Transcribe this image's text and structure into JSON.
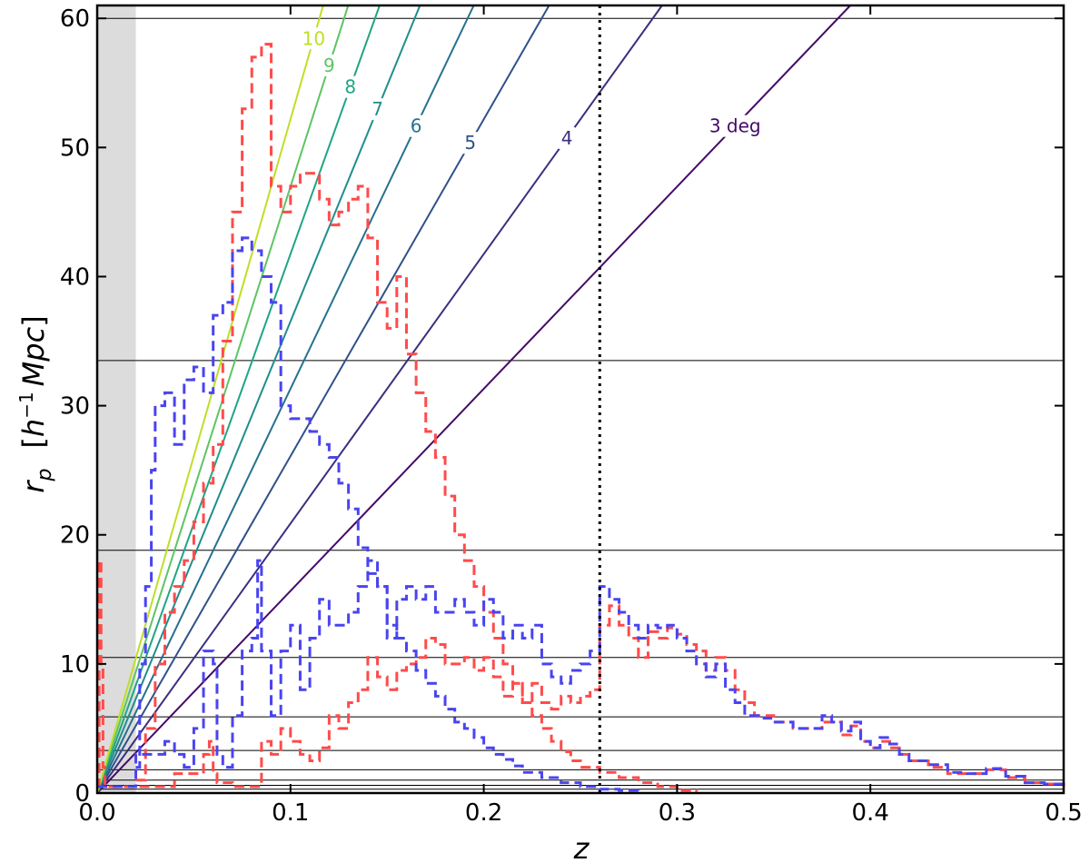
{
  "chart_data": {
    "type": "line",
    "title": "",
    "xlabel": "z",
    "ylabel_main": "r",
    "ylabel_sub": "p",
    "ylabel_units_open": "[",
    "ylabel_units_h": "h",
    "ylabel_units_exp": "−1",
    "ylabel_units_rest": "Mpc",
    "ylabel_units_close": "]",
    "xlim": [
      0.0,
      0.5
    ],
    "ylim": [
      0,
      61
    ],
    "xticks": [
      0.0,
      0.1,
      0.2,
      0.3,
      0.4,
      0.5
    ],
    "xtick_labels": [
      "0.0",
      "0.1",
      "0.2",
      "0.3",
      "0.4",
      "0.5"
    ],
    "yticks": [
      0,
      10,
      20,
      30,
      40,
      50,
      60
    ],
    "ytick_labels": [
      "0",
      "10",
      "20",
      "30",
      "40",
      "50",
      "60"
    ],
    "shaded_region": {
      "x": [
        0.0,
        0.02
      ],
      "color": "#dcdcdc"
    },
    "vertical_line": {
      "x": 0.26,
      "style": "dotted",
      "color": "#000000"
    },
    "horizontal_lines": [
      0.3,
      0.6,
      1.0,
      1.8,
      3.3,
      5.9,
      10.5,
      18.8,
      33.5,
      60.0
    ],
    "angle_lines": [
      {
        "deg": 3,
        "label": "3 deg",
        "color": "#440a68",
        "label_x": 0.33
      },
      {
        "deg": 4,
        "label": "4",
        "color": "#3b2f80",
        "label_x": 0.243
      },
      {
        "deg": 5,
        "label": "5",
        "color": "#30518a",
        "label_x": 0.193
      },
      {
        "deg": 6,
        "label": "6",
        "color": "#26718e",
        "label_x": 0.165
      },
      {
        "deg": 7,
        "label": "7",
        "color": "#1f8e8c",
        "label_x": 0.145
      },
      {
        "deg": 8,
        "label": "8",
        "color": "#20a584",
        "label_x": 0.131
      },
      {
        "deg": 9,
        "label": "9",
        "color": "#5cc562",
        "label_x": 0.12
      },
      {
        "deg": 10,
        "label": "10",
        "color": "#bddf26",
        "label_x": 0.112
      }
    ],
    "series": [
      {
        "color": "#ff4b4b",
        "style": "dashed",
        "points": [
          [
            0.0,
            0.5
          ],
          [
            0.001,
            18
          ],
          [
            0.002,
            10
          ],
          [
            0.003,
            2
          ],
          [
            0.004,
            0.5
          ],
          [
            0.02,
            0.5
          ],
          [
            0.04,
            1.5
          ],
          [
            0.05,
            1.5
          ],
          [
            0.055,
            3
          ],
          [
            0.058,
            4
          ],
          [
            0.06,
            1.5
          ],
          [
            0.062,
            0.8
          ],
          [
            0.07,
            0.5
          ],
          [
            0.08,
            0.5
          ],
          [
            0.085,
            4
          ],
          [
            0.09,
            3
          ],
          [
            0.095,
            5
          ],
          [
            0.1,
            4
          ],
          [
            0.105,
            3
          ],
          [
            0.11,
            2.5
          ],
          [
            0.115,
            3.5
          ],
          [
            0.12,
            6
          ],
          [
            0.125,
            5
          ],
          [
            0.13,
            7
          ],
          [
            0.135,
            8
          ],
          [
            0.14,
            10.5
          ],
          [
            0.145,
            9
          ],
          [
            0.15,
            8
          ],
          [
            0.155,
            9.5
          ],
          [
            0.16,
            10
          ],
          [
            0.165,
            10.5
          ],
          [
            0.17,
            12
          ],
          [
            0.175,
            11.5
          ],
          [
            0.18,
            10
          ],
          [
            0.185,
            10
          ],
          [
            0.19,
            10.5
          ],
          [
            0.195,
            9.5
          ],
          [
            0.2,
            10.5
          ],
          [
            0.205,
            9
          ],
          [
            0.21,
            7.5
          ],
          [
            0.215,
            8.5
          ],
          [
            0.22,
            7
          ],
          [
            0.225,
            8.5
          ],
          [
            0.23,
            7
          ],
          [
            0.235,
            6.5
          ],
          [
            0.24,
            7.5
          ],
          [
            0.245,
            7
          ],
          [
            0.25,
            7.5
          ],
          [
            0.255,
            8
          ],
          [
            0.26,
            13
          ],
          [
            0.265,
            14.5
          ],
          [
            0.27,
            13
          ],
          [
            0.275,
            12
          ],
          [
            0.28,
            10.5
          ],
          [
            0.285,
            12.5
          ],
          [
            0.29,
            12
          ],
          [
            0.295,
            12.8
          ],
          [
            0.3,
            12.3
          ],
          [
            0.305,
            11.5
          ],
          [
            0.31,
            11
          ],
          [
            0.315,
            9.5
          ],
          [
            0.32,
            10.5
          ],
          [
            0.325,
            9.5
          ],
          [
            0.33,
            8
          ],
          [
            0.335,
            7
          ],
          [
            0.34,
            6
          ],
          [
            0.345,
            6
          ],
          [
            0.35,
            5.5
          ],
          [
            0.36,
            5
          ],
          [
            0.37,
            5
          ],
          [
            0.375,
            5.5
          ],
          [
            0.38,
            5.5
          ],
          [
            0.385,
            4.5
          ],
          [
            0.39,
            5.2
          ],
          [
            0.395,
            4
          ],
          [
            0.4,
            3.5
          ],
          [
            0.405,
            4
          ],
          [
            0.41,
            3.5
          ],
          [
            0.415,
            3
          ],
          [
            0.42,
            2.5
          ],
          [
            0.43,
            2
          ],
          [
            0.44,
            1.5
          ],
          [
            0.45,
            1.5
          ],
          [
            0.46,
            1.8
          ],
          [
            0.47,
            1.2
          ],
          [
            0.48,
            0.8
          ],
          [
            0.49,
            0.7
          ],
          [
            0.5,
            0.5
          ]
        ]
      },
      {
        "color": "#ff4b4b",
        "style": "dashed",
        "points": [
          [
            0.02,
            1
          ],
          [
            0.025,
            5
          ],
          [
            0.03,
            10
          ],
          [
            0.035,
            14
          ],
          [
            0.04,
            16
          ],
          [
            0.045,
            18
          ],
          [
            0.05,
            21
          ],
          [
            0.055,
            24
          ],
          [
            0.06,
            27
          ],
          [
            0.065,
            35
          ],
          [
            0.07,
            45
          ],
          [
            0.075,
            53
          ],
          [
            0.08,
            57
          ],
          [
            0.085,
            58
          ],
          [
            0.09,
            47
          ],
          [
            0.095,
            45
          ],
          [
            0.1,
            47
          ],
          [
            0.105,
            48
          ],
          [
            0.11,
            48
          ],
          [
            0.115,
            46
          ],
          [
            0.12,
            44
          ],
          [
            0.125,
            45
          ],
          [
            0.13,
            46
          ],
          [
            0.135,
            47
          ],
          [
            0.14,
            43
          ],
          [
            0.145,
            38
          ],
          [
            0.15,
            36
          ],
          [
            0.155,
            40
          ],
          [
            0.16,
            34
          ],
          [
            0.165,
            31
          ],
          [
            0.17,
            28
          ],
          [
            0.175,
            26
          ],
          [
            0.18,
            23
          ],
          [
            0.185,
            20
          ],
          [
            0.19,
            18
          ],
          [
            0.195,
            16
          ],
          [
            0.2,
            14
          ],
          [
            0.205,
            12
          ],
          [
            0.21,
            10
          ],
          [
            0.215,
            8.5
          ],
          [
            0.22,
            7
          ],
          [
            0.225,
            6
          ],
          [
            0.23,
            5
          ],
          [
            0.235,
            4
          ],
          [
            0.24,
            3.2
          ],
          [
            0.245,
            2.5
          ],
          [
            0.25,
            2
          ],
          [
            0.26,
            1.6
          ],
          [
            0.27,
            1.2
          ],
          [
            0.28,
            0.8
          ],
          [
            0.29,
            0.5
          ],
          [
            0.3,
            0.2
          ],
          [
            0.31,
            0.1
          ]
        ]
      },
      {
        "color": "#4a44f0",
        "style": "dashed",
        "points": [
          [
            0.0,
            0.5
          ],
          [
            0.02,
            0.5
          ],
          [
            0.02,
            3
          ],
          [
            0.03,
            3
          ],
          [
            0.035,
            4
          ],
          [
            0.04,
            3
          ],
          [
            0.045,
            2
          ],
          [
            0.05,
            5
          ],
          [
            0.055,
            11
          ],
          [
            0.06,
            10
          ],
          [
            0.062,
            3
          ],
          [
            0.065,
            2
          ],
          [
            0.07,
            6
          ],
          [
            0.075,
            11
          ],
          [
            0.08,
            12
          ],
          [
            0.083,
            18
          ],
          [
            0.085,
            11
          ],
          [
            0.09,
            6
          ],
          [
            0.095,
            11
          ],
          [
            0.1,
            13
          ],
          [
            0.105,
            8
          ],
          [
            0.11,
            12
          ],
          [
            0.115,
            15
          ],
          [
            0.12,
            13
          ],
          [
            0.125,
            13
          ],
          [
            0.13,
            14
          ],
          [
            0.135,
            16
          ],
          [
            0.14,
            18
          ],
          [
            0.145,
            16
          ],
          [
            0.15,
            12
          ],
          [
            0.155,
            15
          ],
          [
            0.16,
            16
          ],
          [
            0.165,
            15
          ],
          [
            0.17,
            16
          ],
          [
            0.175,
            14
          ],
          [
            0.18,
            14
          ],
          [
            0.185,
            15
          ],
          [
            0.19,
            14
          ],
          [
            0.195,
            13
          ],
          [
            0.2,
            15
          ],
          [
            0.205,
            14
          ],
          [
            0.21,
            12
          ],
          [
            0.215,
            13
          ],
          [
            0.22,
            12
          ],
          [
            0.225,
            13
          ],
          [
            0.23,
            10
          ],
          [
            0.235,
            9
          ],
          [
            0.24,
            8.5
          ],
          [
            0.245,
            9.5
          ],
          [
            0.25,
            10
          ],
          [
            0.255,
            11
          ],
          [
            0.26,
            16
          ],
          [
            0.265,
            15
          ],
          [
            0.27,
            14
          ],
          [
            0.275,
            13
          ],
          [
            0.28,
            12
          ],
          [
            0.285,
            13
          ],
          [
            0.29,
            12.8
          ],
          [
            0.295,
            13
          ],
          [
            0.3,
            12
          ],
          [
            0.305,
            11
          ],
          [
            0.31,
            10
          ],
          [
            0.315,
            9
          ],
          [
            0.32,
            10
          ],
          [
            0.325,
            8
          ],
          [
            0.33,
            7
          ],
          [
            0.335,
            6
          ],
          [
            0.34,
            6
          ],
          [
            0.345,
            5.8
          ],
          [
            0.35,
            5.5
          ],
          [
            0.36,
            5
          ],
          [
            0.37,
            5
          ],
          [
            0.375,
            6
          ],
          [
            0.38,
            5.5
          ],
          [
            0.385,
            4.8
          ],
          [
            0.39,
            5.5
          ],
          [
            0.395,
            4
          ],
          [
            0.4,
            3.5
          ],
          [
            0.405,
            4.3
          ],
          [
            0.41,
            3.8
          ],
          [
            0.415,
            3
          ],
          [
            0.42,
            2.5
          ],
          [
            0.43,
            2.2
          ],
          [
            0.44,
            1.6
          ],
          [
            0.45,
            1.5
          ],
          [
            0.46,
            1.9
          ],
          [
            0.47,
            1.3
          ],
          [
            0.48,
            0.8
          ],
          [
            0.49,
            0.7
          ],
          [
            0.5,
            0.5
          ]
        ]
      },
      {
        "color": "#4a44f0",
        "style": "dashed",
        "points": [
          [
            0.02,
            2
          ],
          [
            0.022,
            10
          ],
          [
            0.025,
            16
          ],
          [
            0.028,
            25
          ],
          [
            0.03,
            30
          ],
          [
            0.035,
            31
          ],
          [
            0.04,
            27
          ],
          [
            0.045,
            32
          ],
          [
            0.05,
            33
          ],
          [
            0.055,
            31
          ],
          [
            0.06,
            37
          ],
          [
            0.065,
            38
          ],
          [
            0.07,
            42
          ],
          [
            0.075,
            43
          ],
          [
            0.08,
            42
          ],
          [
            0.085,
            40
          ],
          [
            0.09,
            38
          ],
          [
            0.095,
            30
          ],
          [
            0.1,
            29
          ],
          [
            0.105,
            29
          ],
          [
            0.11,
            28
          ],
          [
            0.115,
            27
          ],
          [
            0.12,
            26
          ],
          [
            0.125,
            24
          ],
          [
            0.13,
            22
          ],
          [
            0.135,
            19
          ],
          [
            0.14,
            17
          ],
          [
            0.145,
            16
          ],
          [
            0.15,
            13
          ],
          [
            0.155,
            12
          ],
          [
            0.16,
            11
          ],
          [
            0.165,
            9.5
          ],
          [
            0.17,
            8.5
          ],
          [
            0.175,
            7.5
          ],
          [
            0.18,
            6.5
          ],
          [
            0.185,
            5.5
          ],
          [
            0.19,
            5
          ],
          [
            0.195,
            4.3
          ],
          [
            0.2,
            3.5
          ],
          [
            0.205,
            3
          ],
          [
            0.21,
            2.6
          ],
          [
            0.215,
            2.1
          ],
          [
            0.22,
            1.6
          ],
          [
            0.23,
            1.2
          ],
          [
            0.24,
            0.8
          ],
          [
            0.25,
            0.5
          ],
          [
            0.26,
            0.3
          ],
          [
            0.27,
            0.2
          ],
          [
            0.28,
            0.1
          ]
        ]
      }
    ]
  }
}
